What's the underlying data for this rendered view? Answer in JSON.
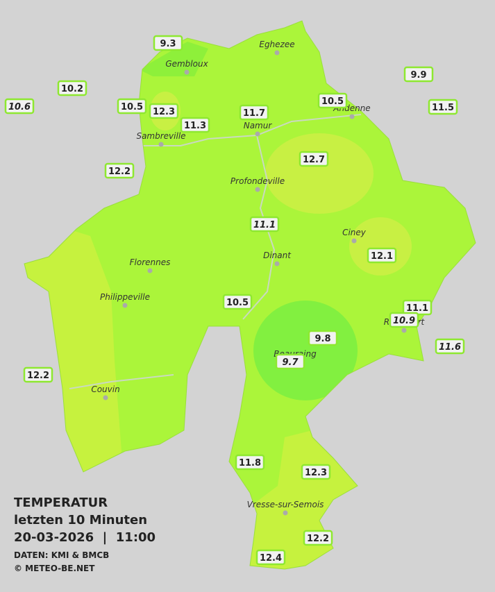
{
  "legend": {
    "title": "TEMPERATUR",
    "subtitle": "letzten 10 Minuten",
    "datetime": "20-03-2026  |  11:00",
    "source": "DATEN: KMI & BMCB",
    "copyright": "© METEO-BE.NET"
  },
  "cities": [
    {
      "name": "Eghezee"
    },
    {
      "name": "Gembloux"
    },
    {
      "name": "Andenne"
    },
    {
      "name": "Namur"
    },
    {
      "name": "Sambreville"
    },
    {
      "name": "Profondeville"
    },
    {
      "name": "Ciney"
    },
    {
      "name": "Florennes"
    },
    {
      "name": "Dinant"
    },
    {
      "name": "Philippeville"
    },
    {
      "name": "Beauraing"
    },
    {
      "name": "Rochefort"
    },
    {
      "name": "Couvin"
    },
    {
      "name": "Vresse-sur-Semois"
    }
  ],
  "stations": [
    {
      "value": 9.3
    },
    {
      "value": 10.2
    },
    {
      "value": 10.6,
      "italic": true
    },
    {
      "value": 10.5
    },
    {
      "value": 12.3
    },
    {
      "value": 11.3
    },
    {
      "value": 11.7
    },
    {
      "value": 10.5
    },
    {
      "value": 9.9
    },
    {
      "value": 11.5
    },
    {
      "value": 12.2
    },
    {
      "value": 12.7
    },
    {
      "value": 11.1,
      "italic": true
    },
    {
      "value": 12.1
    },
    {
      "value": 10.5
    },
    {
      "value": 11.1
    },
    {
      "value": 10.9,
      "italic": true
    },
    {
      "value": 9.8
    },
    {
      "value": 9.7,
      "italic": true
    },
    {
      "value": 11.6,
      "italic": true
    },
    {
      "value": 12.2
    },
    {
      "value": 11.8
    },
    {
      "value": 12.3
    },
    {
      "value": 12.2
    },
    {
      "value": 12.4
    }
  ]
}
